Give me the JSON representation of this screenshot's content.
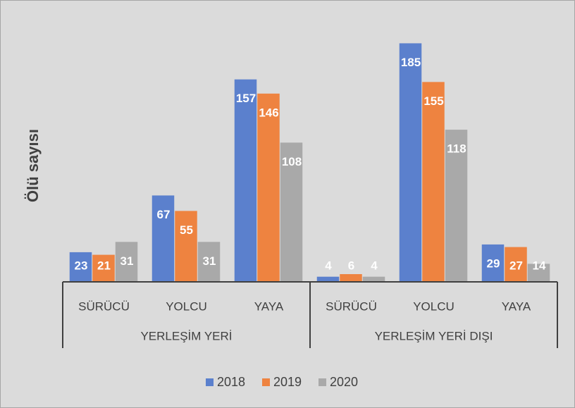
{
  "chart_data": {
    "type": "bar",
    "y_label": "Ölü sayısı",
    "categories": [
      "SÜRÜCÜ",
      "YOLCU",
      "YAYA",
      "SÜRÜCÜ",
      "YOLCU",
      "YAYA"
    ],
    "groups": [
      {
        "name": "YERLEŞİM YERİ",
        "size": 3
      },
      {
        "name": "YERLEŞİM YERİ DIŞI",
        "size": 3
      }
    ],
    "series": [
      {
        "name": "2018",
        "color": "#5b80cd",
        "values": [
          23,
          67,
          157,
          4,
          185,
          29
        ]
      },
      {
        "name": "2019",
        "color": "#ee8340",
        "values": [
          21,
          55,
          146,
          6,
          155,
          27
        ]
      },
      {
        "name": "2020",
        "color": "#a9a9a9",
        "values": [
          31,
          31,
          108,
          4,
          118,
          14
        ]
      }
    ],
    "ylim": [
      0,
      200
    ],
    "legend": "bottom"
  }
}
